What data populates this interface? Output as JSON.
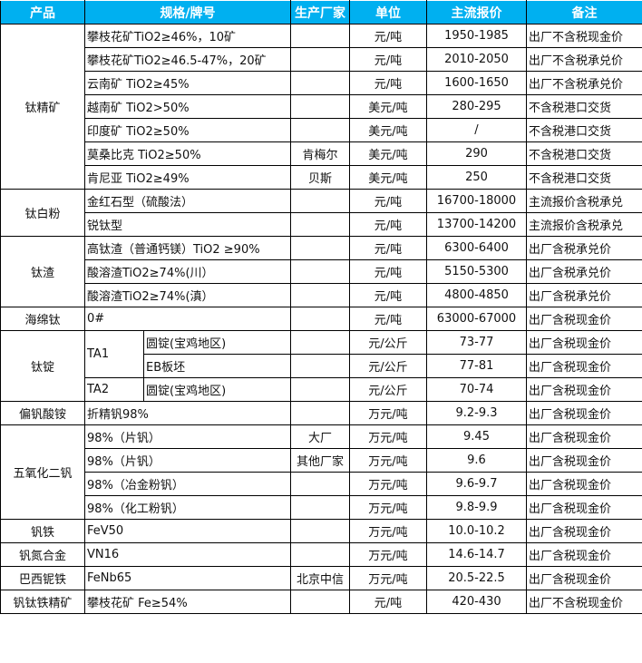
{
  "colors": {
    "header_bg": "#00b0f0",
    "header_text": "#ffffff"
  },
  "headers": [
    "产品",
    "规格/牌号",
    "生产厂家",
    "单位",
    "主流报价",
    "备注"
  ],
  "groups": [
    {
      "product": "钛精矿",
      "rows": [
        {
          "spec": "攀枝花矿TiO2≥46%，10矿",
          "maker": "",
          "unit": "元/吨",
          "price": "1950-1985",
          "note": "出厂不含税现金价"
        },
        {
          "spec": "攀枝花矿TiO2≥46.5-47%，20矿",
          "maker": "",
          "unit": "元/吨",
          "price": "2010-2050",
          "note": "出厂不含税承兑价"
        },
        {
          "spec": "云南矿 TiO2≥45%",
          "maker": "",
          "unit": "元/吨",
          "price": "1600-1650",
          "note": "出厂不含税承兑价"
        },
        {
          "spec": "越南矿 TiO2>50%",
          "maker": "",
          "unit": "美元/吨",
          "price": "280-295",
          "note": "不含税港口交货"
        },
        {
          "spec": "印度矿 TiO2≥50%",
          "maker": "",
          "unit": "美元/吨",
          "price": "/",
          "note": "不含税港口交货"
        },
        {
          "spec": "莫桑比克 TiO2≥50%",
          "maker": "肯梅尔",
          "unit": "美元/吨",
          "price": "290",
          "note": "不含税港口交货"
        },
        {
          "spec": "肯尼亚 TiO2≥49%",
          "maker": "贝斯",
          "unit": "美元/吨",
          "price": "250",
          "note": "不含税港口交货"
        }
      ]
    },
    {
      "product": "钛白粉",
      "rows": [
        {
          "spec": "金红石型（硫酸法）",
          "maker": "",
          "unit": "元/吨",
          "price": "16700-18000",
          "note": "主流报价含税承兑"
        },
        {
          "spec": "锐钛型",
          "maker": "",
          "unit": "元/吨",
          "price": "13700-14200",
          "note": "主流报价含税承兑"
        }
      ]
    },
    {
      "product": "钛渣",
      "rows": [
        {
          "spec": "高钛渣（普通钙镁）TiO2 ≥90%",
          "maker": "",
          "unit": "元/吨",
          "price": "6300-6400",
          "note": "出厂含税承兑价"
        },
        {
          "spec": "酸溶渣TiO2≥74%(川）",
          "maker": "",
          "unit": "元/吨",
          "price": "5150-5300",
          "note": "出厂含税承兑价"
        },
        {
          "spec": "酸溶渣TiO2≥74%(滇）",
          "maker": "",
          "unit": "元/吨",
          "price": "4800-4850",
          "note": "出厂含税承兑价"
        }
      ]
    },
    {
      "product": "海绵钛",
      "rows": [
        {
          "spec": "0#",
          "maker": "",
          "unit": "元/吨",
          "price": "63000-67000",
          "note": "出厂含税现金价"
        }
      ]
    },
    {
      "product": "钛锭",
      "rows": [
        {
          "grade": "TA1",
          "grade_span": 2,
          "spec": "圆锭(宝鸡地区)",
          "maker": "",
          "unit": "元/公斤",
          "price": "73-77",
          "note": "出厂含税现金价"
        },
        {
          "spec": "EB板坯",
          "maker": "",
          "unit": "元/公斤",
          "price": "77-81",
          "note": "出厂含税现金价"
        },
        {
          "grade": "TA2",
          "grade_span": 1,
          "spec": "圆锭(宝鸡地区)",
          "maker": "",
          "unit": "元/公斤",
          "price": "70-74",
          "note": "出厂含税现金价"
        }
      ]
    },
    {
      "product": "偏钒酸铵",
      "rows": [
        {
          "spec": "折精钒98%",
          "maker": "",
          "unit": "万元/吨",
          "price": "9.2-9.3",
          "note": "出厂含税现金价"
        }
      ]
    },
    {
      "product": "五氧化二钒",
      "rows": [
        {
          "spec": "98%（片钒）",
          "maker": "大厂",
          "unit": "万元/吨",
          "price": "9.45",
          "note": "出厂含税现金价"
        },
        {
          "spec": "98%（片钒）",
          "maker": "其他厂家",
          "unit": "万元/吨",
          "price": "9.6",
          "note": "出厂含税现金价"
        },
        {
          "spec": "98%（冶金粉钒）",
          "maker": "",
          "unit": "万元/吨",
          "price": "9.6-9.7",
          "note": "出厂含税现金价"
        },
        {
          "spec": "98%（化工粉钒）",
          "maker": "",
          "unit": "万元/吨",
          "price": "9.8-9.9",
          "note": "出厂含税现金价"
        }
      ]
    },
    {
      "product": "钒铁",
      "rows": [
        {
          "spec": "FeV50",
          "maker": "",
          "unit": "万元/吨",
          "price": "10.0-10.2",
          "note": "出厂含税现金价"
        }
      ]
    },
    {
      "product": "钒氮合金",
      "rows": [
        {
          "spec": "VN16",
          "maker": "",
          "unit": "万元/吨",
          "price": "14.6-14.7",
          "note": "出厂含税现金价"
        }
      ]
    },
    {
      "product": "巴西铌铁",
      "rows": [
        {
          "spec": "FeNb65",
          "maker": "北京中信",
          "unit": "万元/吨",
          "price": "20.5-22.5",
          "note": "出厂含税现金价"
        }
      ]
    },
    {
      "product": "钒钛铁精矿",
      "rows": [
        {
          "spec": "攀枝花矿 Fe≥54%",
          "maker": "",
          "unit": "元/吨",
          "price": "420-430",
          "note": "出厂不含税现金价"
        }
      ]
    }
  ]
}
